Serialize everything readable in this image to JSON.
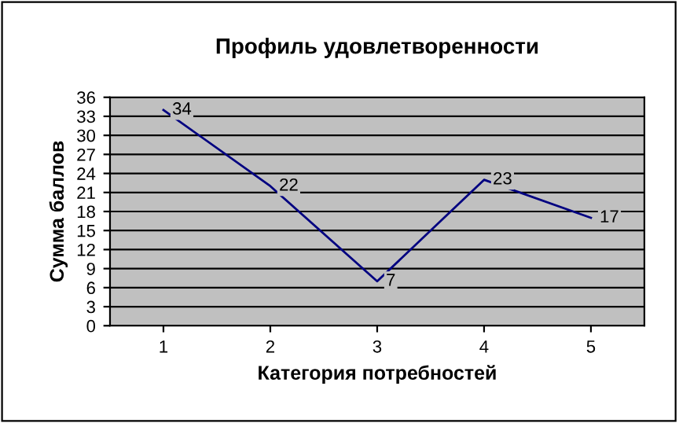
{
  "chart_data": {
    "type": "line",
    "title": "Профиль удовлетворенности",
    "xlabel": "Категория потребностей",
    "ylabel": "Сумма баллов",
    "categories": [
      "1",
      "2",
      "3",
      "4",
      "5"
    ],
    "series": [
      {
        "color": "#000080",
        "values": [
          34,
          22,
          7,
          23,
          17
        ]
      }
    ],
    "ylim": [
      0,
      36
    ],
    "yticks": [
      0,
      3,
      6,
      9,
      12,
      15,
      18,
      21,
      24,
      27,
      30,
      33,
      36
    ],
    "grid": "y",
    "legend": false,
    "marker": "none",
    "line_style": "solid",
    "data_labels": true
  }
}
